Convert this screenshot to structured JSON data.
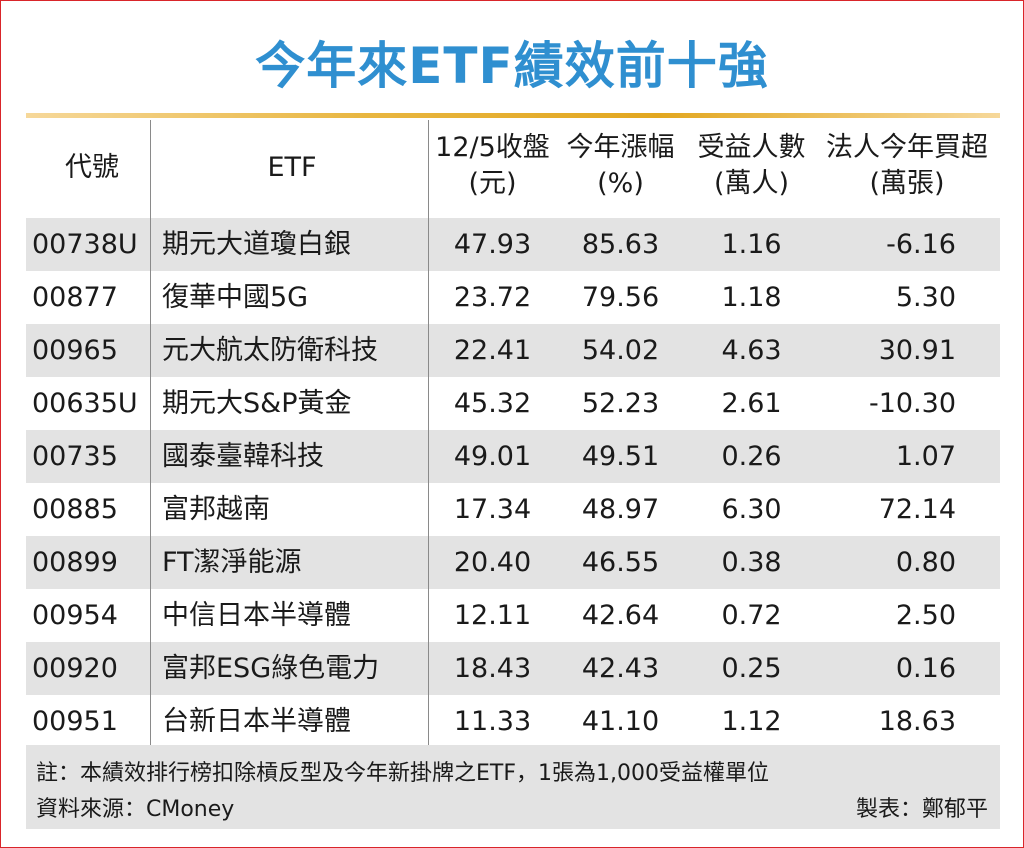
{
  "title": "今年來ETF績效前十強",
  "chart_data": {
    "type": "table",
    "columns": [
      {
        "key": "code",
        "l1": "代號",
        "l2": ""
      },
      {
        "key": "name",
        "l1": "ETF",
        "l2": ""
      },
      {
        "key": "close",
        "l1": "12/5收盤",
        "l2": "(元)"
      },
      {
        "key": "chg",
        "l1": "今年漲幅",
        "l2": "(%)"
      },
      {
        "key": "hold",
        "l1": "受益人數",
        "l2": "(萬人)"
      },
      {
        "key": "inst",
        "l1": "法人今年買超",
        "l2": "(萬張)"
      }
    ],
    "rows": [
      {
        "code": "00738U",
        "name": "期元大道瓊白銀",
        "close": "47.93",
        "chg": "85.63",
        "hold": "1.16",
        "inst": "-6.16"
      },
      {
        "code": "00877",
        "name": "復華中國5G",
        "close": "23.72",
        "chg": "79.56",
        "hold": "1.18",
        "inst": "5.30"
      },
      {
        "code": "00965",
        "name": "元大航太防衛科技",
        "close": "22.41",
        "chg": "54.02",
        "hold": "4.63",
        "inst": "30.91"
      },
      {
        "code": "00635U",
        "name": "期元大S&P黃金",
        "close": "45.32",
        "chg": "52.23",
        "hold": "2.61",
        "inst": "-10.30"
      },
      {
        "code": "00735",
        "name": "國泰臺韓科技",
        "close": "49.01",
        "chg": "49.51",
        "hold": "0.26",
        "inst": "1.07"
      },
      {
        "code": "00885",
        "name": "富邦越南",
        "close": "17.34",
        "chg": "48.97",
        "hold": "6.30",
        "inst": "72.14"
      },
      {
        "code": "00899",
        "name": "FT潔淨能源",
        "close": "20.40",
        "chg": "46.55",
        "hold": "0.38",
        "inst": "0.80"
      },
      {
        "code": "00954",
        "name": "中信日本半導體",
        "close": "12.11",
        "chg": "42.64",
        "hold": "0.72",
        "inst": "2.50"
      },
      {
        "code": "00920",
        "name": "富邦ESG綠色電力",
        "close": "18.43",
        "chg": "42.43",
        "hold": "0.25",
        "inst": "0.16"
      },
      {
        "code": "00951",
        "name": "台新日本半導體",
        "close": "11.33",
        "chg": "41.10",
        "hold": "1.12",
        "inst": "18.63"
      }
    ]
  },
  "footer": {
    "note": "註：本績效排行榜扣除槓反型及今年新掛牌之ETF，1張為1,000受益權單位",
    "source": "資料來源：CMoney",
    "credit": "製表：鄭郁平"
  },
  "colors": {
    "title": "#2f8fd0",
    "rule": "#e2a720",
    "shade": "#e3e3e3",
    "border": "#d9252a"
  }
}
